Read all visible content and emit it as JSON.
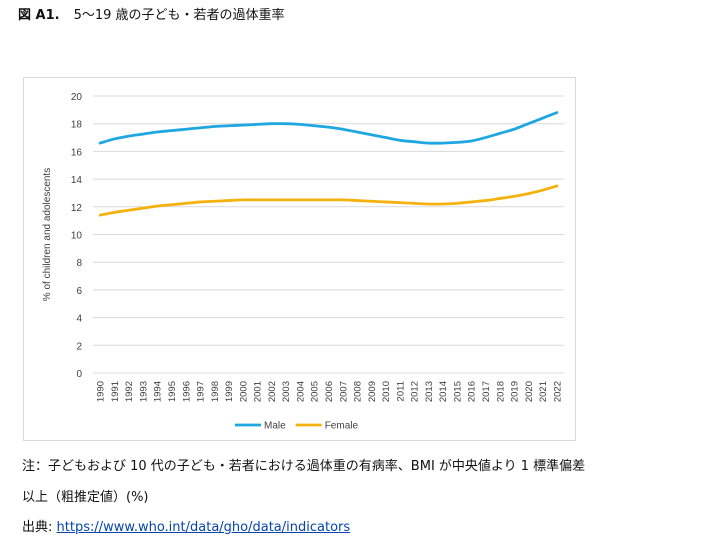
{
  "figure": {
    "label": "図 A1.",
    "title": "5〜19 歳の子ども・若者の過体重率"
  },
  "notes": {
    "line1": "注：子どもおよび 10 代の子ども・若者における過体重の有病率、BMI が中央値より 1 標準偏差",
    "line2": "以上（粗推定値）(%)"
  },
  "source": {
    "prefix": "出典: ",
    "url_text": "https://www.who.int/data/gho/data/indicators"
  },
  "chart_data": {
    "type": "line",
    "title": "",
    "ylabel": "% of children and adolescents",
    "xlabel": "",
    "ylim": [
      0,
      20
    ],
    "yticks": [
      0,
      2,
      4,
      6,
      8,
      10,
      12,
      14,
      16,
      18,
      20
    ],
    "grid": true,
    "legend_position": "bottom",
    "x": [
      "1990",
      "1991",
      "1992",
      "1993",
      "1994",
      "1995",
      "1996",
      "1997",
      "1998",
      "1999",
      "2000",
      "2001",
      "2002",
      "2003",
      "2004",
      "2005",
      "2006",
      "2007",
      "2008",
      "2009",
      "2010",
      "2011",
      "2012",
      "2013",
      "2014",
      "2015",
      "2016",
      "2017",
      "2018",
      "2019",
      "2020",
      "2021",
      "2022"
    ],
    "series": [
      {
        "name": "Male",
        "color": "#1fa7e1",
        "values": [
          16.6,
          16.9,
          17.1,
          17.25,
          17.4,
          17.5,
          17.6,
          17.7,
          17.8,
          17.85,
          17.9,
          17.95,
          18.0,
          18.0,
          17.95,
          17.85,
          17.75,
          17.6,
          17.4,
          17.2,
          17.0,
          16.8,
          16.7,
          16.6,
          16.6,
          16.65,
          16.75,
          17.0,
          17.3,
          17.6,
          18.0,
          18.4,
          18.8
        ]
      },
      {
        "name": "Female",
        "color": "#f5b20f",
        "values": [
          11.4,
          11.6,
          11.75,
          11.9,
          12.05,
          12.15,
          12.25,
          12.35,
          12.4,
          12.45,
          12.5,
          12.5,
          12.5,
          12.5,
          12.5,
          12.5,
          12.5,
          12.5,
          12.45,
          12.4,
          12.35,
          12.3,
          12.25,
          12.2,
          12.2,
          12.25,
          12.35,
          12.45,
          12.6,
          12.75,
          12.95,
          13.2,
          13.5
        ]
      }
    ]
  }
}
